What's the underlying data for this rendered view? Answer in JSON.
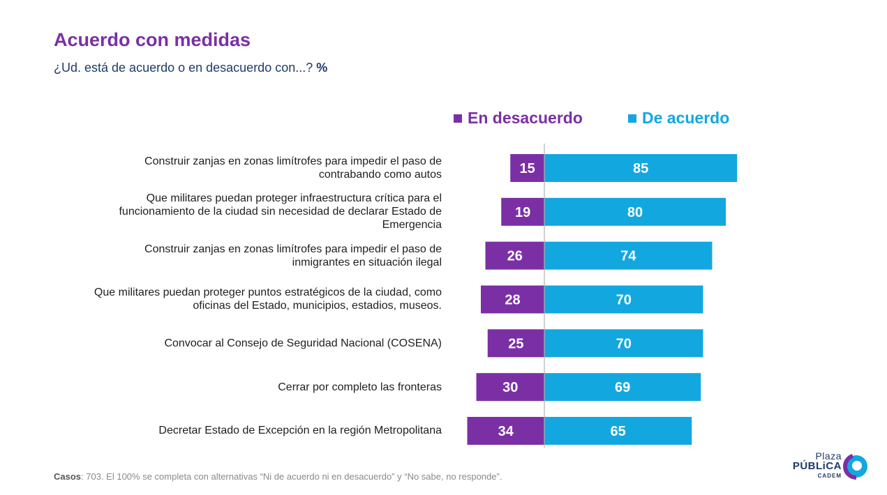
{
  "title": "Acuerdo con medidas",
  "subtitle": "¿Ud. está de acuerdo o en desacuerdo con...?",
  "subtitle_unit": "%",
  "colors": {
    "title": "#7B2FA5",
    "disagree": "#7B2FA5",
    "agree": "#13A7E0",
    "axis": "#B0B0B0"
  },
  "legend": {
    "disagree": "En desacuerdo",
    "agree": "De acuerdo"
  },
  "footer": {
    "label": "Casos",
    "text": ": 703. El 100% se completa con alternativas “Ni de acuerdo ni en desacuerdo” y “No sabe, no responde”."
  },
  "logo": {
    "line1": "Plaza",
    "line2": "PÚBLiCA",
    "line3": "CADEM"
  },
  "chart_data": {
    "type": "bar",
    "orientation": "horizontal-diverging",
    "categories": [
      "Construir zanjas en zonas limítrofes para impedir el paso de contrabando como autos",
      "Que militares puedan proteger infraestructura crítica para el funcionamiento de la ciudad sin necesidad de declarar Estado de Emergencia",
      "Construir zanjas en zonas limítrofes para impedir el paso de inmigrantes en situación ilegal",
      "Que militares puedan proteger puntos estratégicos de la ciudad, como oficinas del Estado, municipios, estadios, museos.",
      "Convocar al Consejo de Seguridad Nacional (COSENA)",
      "Cerrar por completo las fronteras",
      "Decretar Estado de Excepción en la región Metropolitana"
    ],
    "series": [
      {
        "name": "En desacuerdo",
        "values": [
          15,
          19,
          26,
          28,
          25,
          30,
          34
        ]
      },
      {
        "name": "De acuerdo",
        "values": [
          85,
          80,
          74,
          70,
          70,
          69,
          65
        ]
      }
    ]
  }
}
